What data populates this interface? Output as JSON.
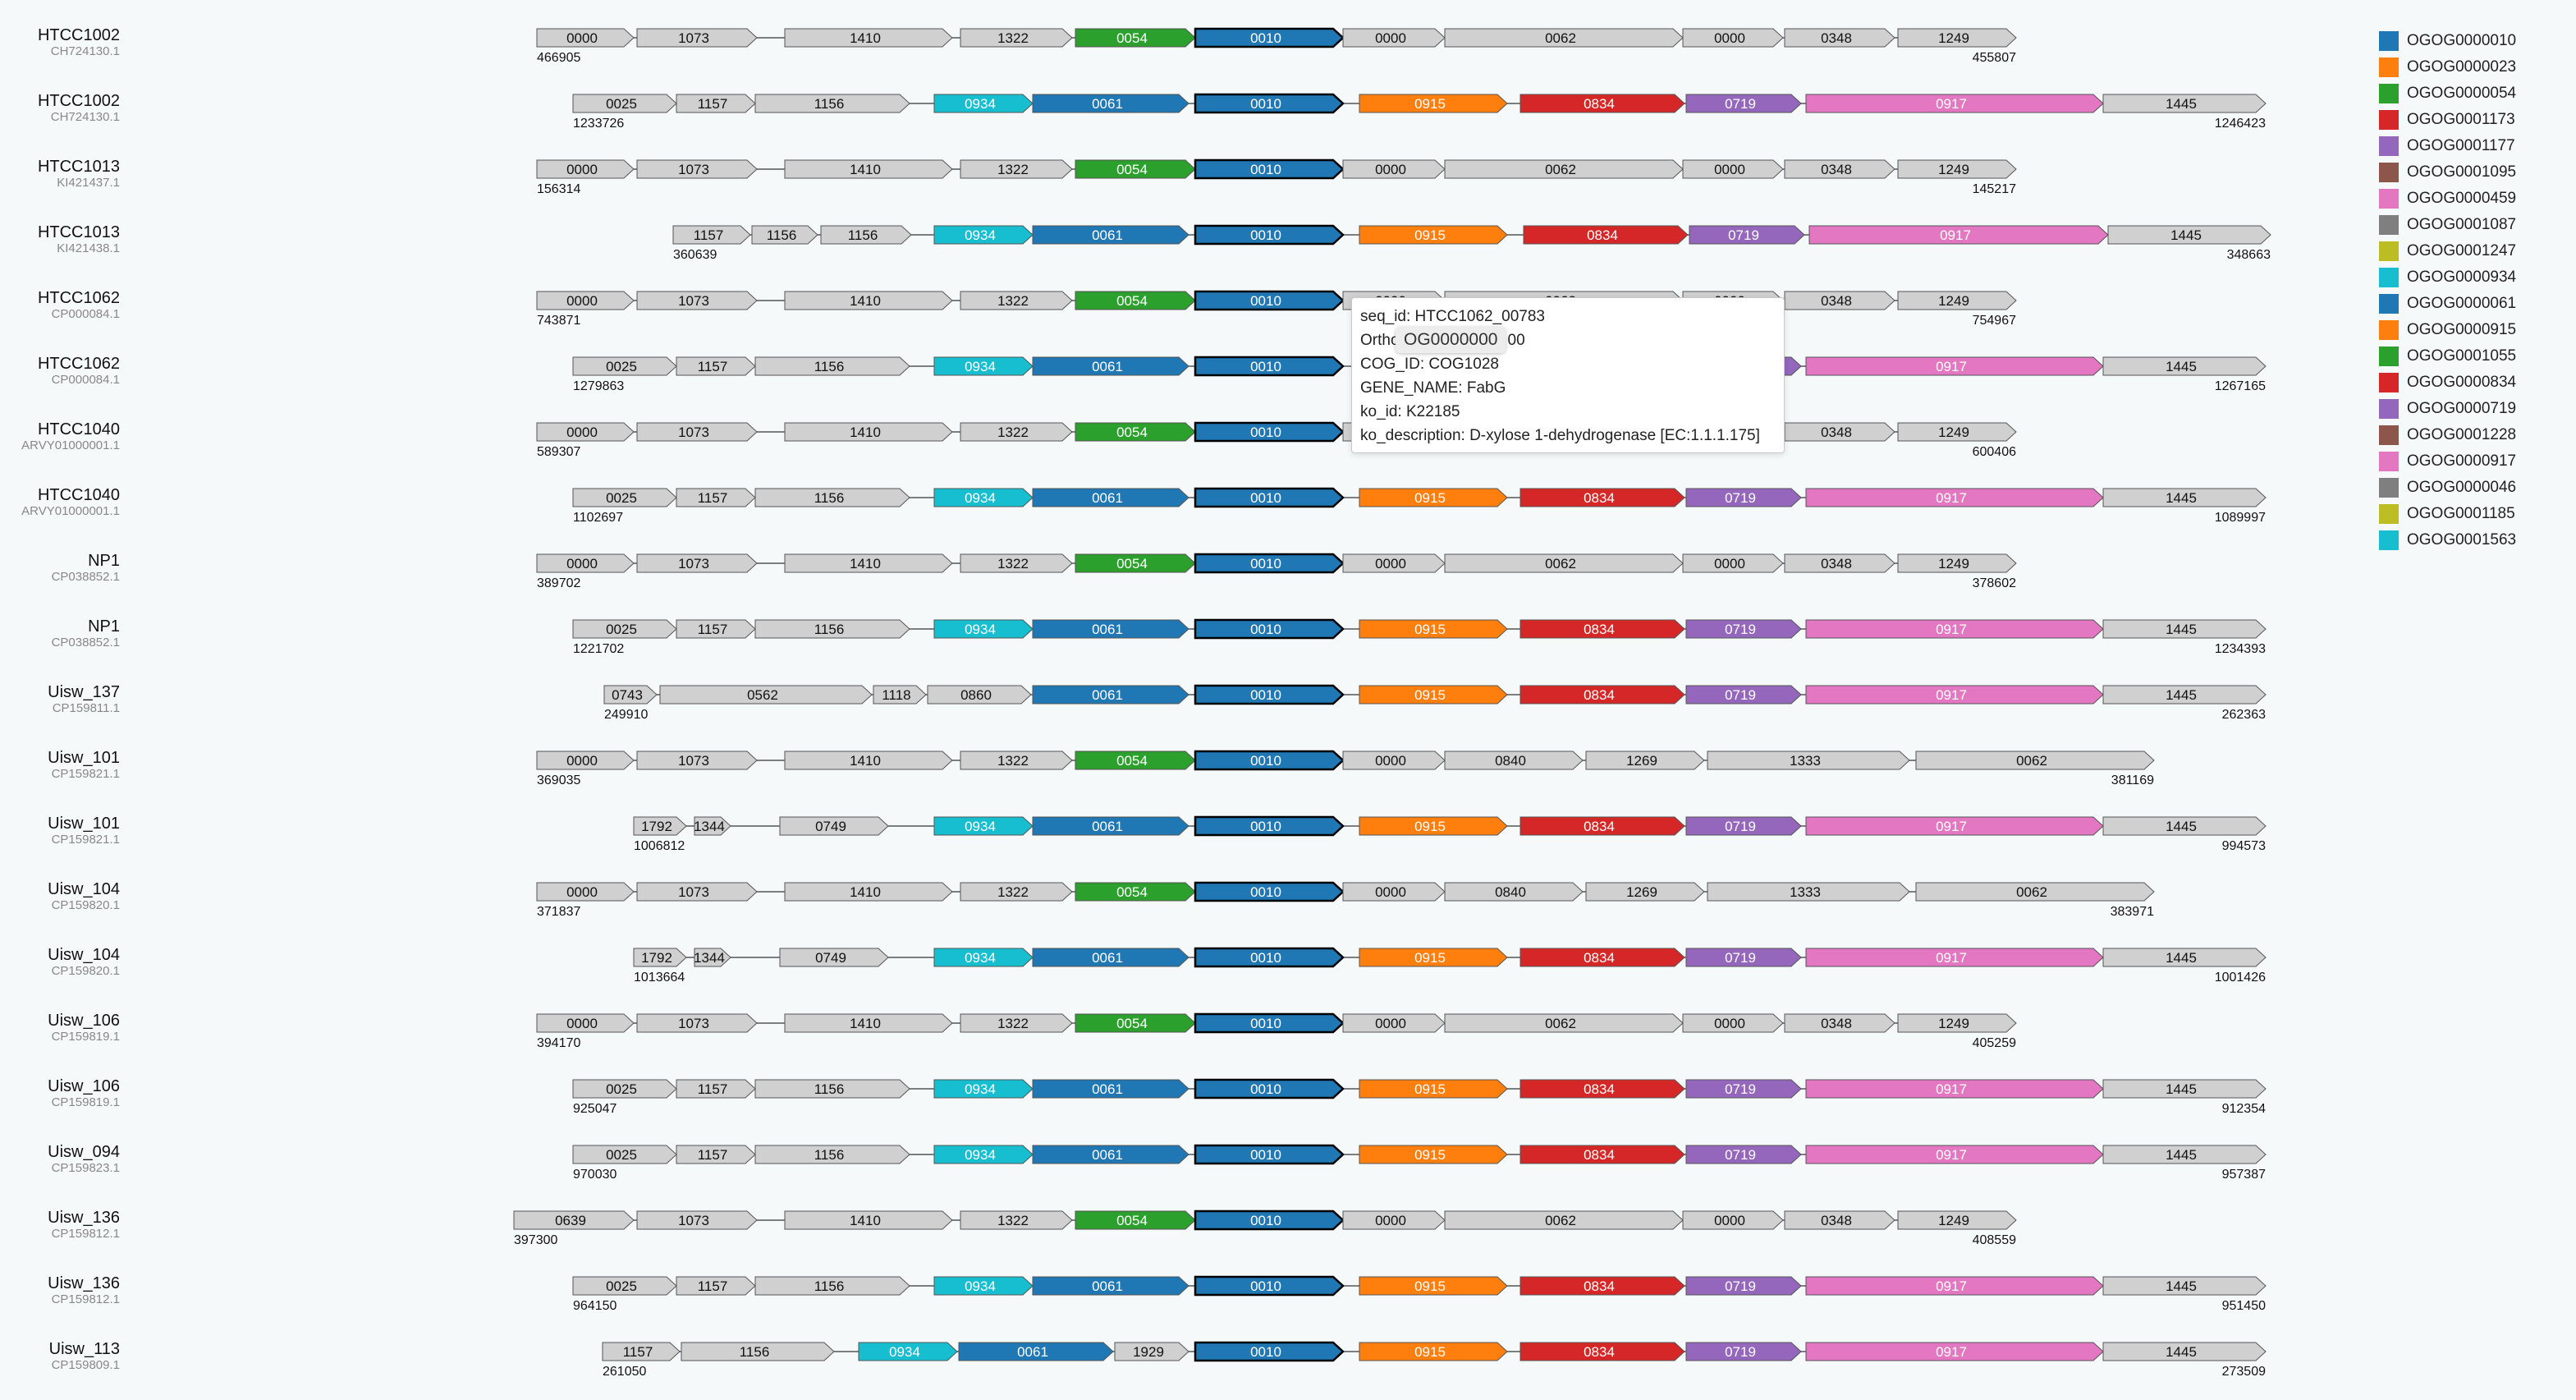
{
  "rows": [
    {
      "name": "HTCC1002",
      "acc": "CH724130.1",
      "start": "466905",
      "end": "455807"
    },
    {
      "name": "HTCC1002",
      "acc": "CH724130.1",
      "start": "1233726",
      "end": "1246423"
    },
    {
      "name": "HTCC1013",
      "acc": "KI421437.1",
      "start": "156314",
      "end": "145217"
    },
    {
      "name": "HTCC1013",
      "acc": "KI421438.1",
      "start": "360639",
      "end": "348663"
    },
    {
      "name": "HTCC1062",
      "acc": "CP000084.1",
      "start": "743871",
      "end": "754967"
    },
    {
      "name": "HTCC1062",
      "acc": "CP000084.1",
      "start": "1279863",
      "end": "1267165"
    },
    {
      "name": "HTCC1040",
      "acc": "ARVY01000001.1",
      "start": "589307",
      "end": "600406"
    },
    {
      "name": "HTCC1040",
      "acc": "ARVY01000001.1",
      "start": "1102697",
      "end": "1089997"
    },
    {
      "name": "NP1",
      "acc": "CP038852.1",
      "start": "389702",
      "end": "378602"
    },
    {
      "name": "NP1",
      "acc": "CP038852.1",
      "start": "1221702",
      "end": "1234393"
    },
    {
      "name": "Uisw_137",
      "acc": "CP159811.1",
      "start": "249910",
      "end": "262363"
    },
    {
      "name": "Uisw_101",
      "acc": "CP159821.1",
      "start": "369035",
      "end": "381169"
    },
    {
      "name": "Uisw_101",
      "acc": "CP159821.1",
      "start": "1006812",
      "end": "994573"
    },
    {
      "name": "Uisw_104",
      "acc": "CP159820.1",
      "start": "371837",
      "end": "383971"
    },
    {
      "name": "Uisw_104",
      "acc": "CP159820.1",
      "start": "1013664",
      "end": "1001426"
    },
    {
      "name": "Uisw_106",
      "acc": "CP159819.1",
      "start": "394170",
      "end": "405259"
    },
    {
      "name": "Uisw_106",
      "acc": "CP159819.1",
      "start": "925047",
      "end": "912354"
    },
    {
      "name": "Uisw_094",
      "acc": "CP159823.1",
      "start": "970030",
      "end": "957387"
    },
    {
      "name": "Uisw_136",
      "acc": "CP159812.1",
      "start": "397300",
      "end": "408559"
    },
    {
      "name": "Uisw_136",
      "acc": "CP159812.1",
      "start": "964150",
      "end": "951450"
    },
    {
      "name": "Uisw_113",
      "acc": "CP159809.1",
      "start": "261050",
      "end": "273509"
    }
  ],
  "gene_rows": [
    [
      [
        "0000",
        "gray"
      ],
      [
        "1073",
        "gray"
      ],
      [
        "1410",
        "gray"
      ],
      [
        "1322",
        "gray"
      ],
      [
        "0054",
        "green"
      ],
      [
        "0010",
        "blue"
      ],
      [
        "0000",
        "gray"
      ],
      [
        "0062",
        "gray"
      ],
      [
        "0000",
        "gray"
      ],
      [
        "0348",
        "gray"
      ],
      [
        "1249",
        "gray"
      ]
    ],
    [
      [
        "0025",
        "gray"
      ],
      [
        "1157",
        "gray"
      ],
      [
        "1156",
        "gray"
      ],
      [
        "0934",
        "cyan"
      ],
      [
        "0061",
        "blue"
      ],
      [
        "0010",
        "blue"
      ],
      [
        "0915",
        "orange"
      ],
      [
        "0834",
        "red"
      ],
      [
        "0719",
        "purple"
      ],
      [
        "0917",
        "pink"
      ],
      [
        "1445",
        "gray"
      ]
    ],
    [
      [
        "0000",
        "gray"
      ],
      [
        "1073",
        "gray"
      ],
      [
        "1410",
        "gray"
      ],
      [
        "1322",
        "gray"
      ],
      [
        "0054",
        "green"
      ],
      [
        "0010",
        "blue"
      ],
      [
        "0000",
        "gray"
      ],
      [
        "0062",
        "gray"
      ],
      [
        "0000",
        "gray"
      ],
      [
        "0348",
        "gray"
      ],
      [
        "1249",
        "gray"
      ]
    ],
    [
      [
        "1157",
        "gray"
      ],
      [
        "1156",
        "gray"
      ],
      [
        "1156",
        "gray"
      ],
      [
        "0934",
        "cyan"
      ],
      [
        "0061",
        "blue"
      ],
      [
        "0010",
        "blue"
      ],
      [
        "0915",
        "orange"
      ],
      [
        "0834",
        "red"
      ],
      [
        "0719",
        "purple"
      ],
      [
        "0917",
        "pink"
      ],
      [
        "1445",
        "gray"
      ]
    ],
    [
      [
        "0000",
        "gray"
      ],
      [
        "1073",
        "gray"
      ],
      [
        "1410",
        "gray"
      ],
      [
        "1322",
        "gray"
      ],
      [
        "0054",
        "green"
      ],
      [
        "0010",
        "blue"
      ],
      [
        "0000",
        "gray"
      ],
      [
        "0062",
        "gray"
      ],
      [
        "0000",
        "gray"
      ],
      [
        "0348",
        "gray"
      ],
      [
        "1249",
        "gray"
      ]
    ],
    [
      [
        "0025",
        "gray"
      ],
      [
        "1157",
        "gray"
      ],
      [
        "1156",
        "gray"
      ],
      [
        "0934",
        "cyan"
      ],
      [
        "0061",
        "blue"
      ],
      [
        "0010",
        "blue"
      ],
      [
        "0915",
        "orange"
      ],
      [
        "0834",
        "red"
      ],
      [
        "0719",
        "purple"
      ],
      [
        "0917",
        "pink"
      ],
      [
        "1445",
        "gray"
      ]
    ],
    [
      [
        "0000",
        "gray"
      ],
      [
        "1073",
        "gray"
      ],
      [
        "1410",
        "gray"
      ],
      [
        "1322",
        "gray"
      ],
      [
        "0054",
        "green"
      ],
      [
        "0010",
        "blue"
      ],
      [
        "0000",
        "gray"
      ],
      [
        "0062",
        "gray"
      ],
      [
        "0000",
        "gray"
      ],
      [
        "0348",
        "gray"
      ],
      [
        "1249",
        "gray"
      ]
    ],
    [
      [
        "0025",
        "gray"
      ],
      [
        "1157",
        "gray"
      ],
      [
        "1156",
        "gray"
      ],
      [
        "0934",
        "cyan"
      ],
      [
        "0061",
        "blue"
      ],
      [
        "0010",
        "blue"
      ],
      [
        "0915",
        "orange"
      ],
      [
        "0834",
        "red"
      ],
      [
        "0719",
        "purple"
      ],
      [
        "0917",
        "pink"
      ],
      [
        "1445",
        "gray"
      ]
    ],
    [
      [
        "0000",
        "gray"
      ],
      [
        "1073",
        "gray"
      ],
      [
        "1410",
        "gray"
      ],
      [
        "1322",
        "gray"
      ],
      [
        "0054",
        "green"
      ],
      [
        "0010",
        "blue"
      ],
      [
        "0000",
        "gray"
      ],
      [
        "0062",
        "gray"
      ],
      [
        "0000",
        "gray"
      ],
      [
        "0348",
        "gray"
      ],
      [
        "1249",
        "gray"
      ]
    ],
    [
      [
        "0025",
        "gray"
      ],
      [
        "1157",
        "gray"
      ],
      [
        "1156",
        "gray"
      ],
      [
        "0934",
        "cyan"
      ],
      [
        "0061",
        "blue"
      ],
      [
        "0010",
        "blue"
      ],
      [
        "0915",
        "orange"
      ],
      [
        "0834",
        "red"
      ],
      [
        "0719",
        "purple"
      ],
      [
        "0917",
        "pink"
      ],
      [
        "1445",
        "gray"
      ]
    ],
    [
      [
        "0743",
        "gray"
      ],
      [
        "0562",
        "gray"
      ],
      [
        "1118",
        "gray"
      ],
      [
        "0860",
        "gray"
      ],
      [
        "0061",
        "blue"
      ],
      [
        "0010",
        "blue"
      ],
      [
        "0915",
        "orange"
      ],
      [
        "0834",
        "red"
      ],
      [
        "0719",
        "purple"
      ],
      [
        "0917",
        "pink"
      ],
      [
        "1445",
        "gray"
      ]
    ],
    [
      [
        "0000",
        "gray"
      ],
      [
        "1073",
        "gray"
      ],
      [
        "1410",
        "gray"
      ],
      [
        "1322",
        "gray"
      ],
      [
        "0054",
        "green"
      ],
      [
        "0010",
        "blue"
      ],
      [
        "0000",
        "gray"
      ],
      [
        "0840",
        "gray"
      ],
      [
        "1269",
        "gray"
      ],
      [
        "1333",
        "gray"
      ],
      [
        "0062",
        "gray"
      ]
    ],
    [
      [
        "1792",
        "gray"
      ],
      [
        "1344",
        "gray"
      ],
      [
        "0749",
        "gray"
      ],
      [
        "0934",
        "cyan"
      ],
      [
        "0061",
        "blue"
      ],
      [
        "0010",
        "blue"
      ],
      [
        "0915",
        "orange"
      ],
      [
        "0834",
        "red"
      ],
      [
        "0719",
        "purple"
      ],
      [
        "0917",
        "pink"
      ],
      [
        "1445",
        "gray"
      ]
    ],
    [
      [
        "0000",
        "gray"
      ],
      [
        "1073",
        "gray"
      ],
      [
        "1410",
        "gray"
      ],
      [
        "1322",
        "gray"
      ],
      [
        "0054",
        "green"
      ],
      [
        "0010",
        "blue"
      ],
      [
        "0000",
        "gray"
      ],
      [
        "0840",
        "gray"
      ],
      [
        "1269",
        "gray"
      ],
      [
        "1333",
        "gray"
      ],
      [
        "0062",
        "gray"
      ]
    ],
    [
      [
        "1792",
        "gray"
      ],
      [
        "1344",
        "gray"
      ],
      [
        "0749",
        "gray"
      ],
      [
        "0934",
        "cyan"
      ],
      [
        "0061",
        "blue"
      ],
      [
        "0010",
        "blue"
      ],
      [
        "0915",
        "orange"
      ],
      [
        "0834",
        "red"
      ],
      [
        "0719",
        "purple"
      ],
      [
        "0917",
        "pink"
      ],
      [
        "1445",
        "gray"
      ]
    ],
    [
      [
        "0000",
        "gray"
      ],
      [
        "1073",
        "gray"
      ],
      [
        "1410",
        "gray"
      ],
      [
        "1322",
        "gray"
      ],
      [
        "0054",
        "green"
      ],
      [
        "0010",
        "blue"
      ],
      [
        "0000",
        "gray"
      ],
      [
        "0062",
        "gray"
      ],
      [
        "0000",
        "gray"
      ],
      [
        "0348",
        "gray"
      ],
      [
        "1249",
        "gray"
      ]
    ],
    [
      [
        "0025",
        "gray"
      ],
      [
        "1157",
        "gray"
      ],
      [
        "1156",
        "gray"
      ],
      [
        "0934",
        "cyan"
      ],
      [
        "0061",
        "blue"
      ],
      [
        "0010",
        "blue"
      ],
      [
        "0915",
        "orange"
      ],
      [
        "0834",
        "red"
      ],
      [
        "0719",
        "purple"
      ],
      [
        "0917",
        "pink"
      ],
      [
        "1445",
        "gray"
      ]
    ],
    [
      [
        "0025",
        "gray"
      ],
      [
        "1157",
        "gray"
      ],
      [
        "1156",
        "gray"
      ],
      [
        "0934",
        "cyan"
      ],
      [
        "0061",
        "blue"
      ],
      [
        "0010",
        "blue"
      ],
      [
        "0915",
        "orange"
      ],
      [
        "0834",
        "red"
      ],
      [
        "0719",
        "purple"
      ],
      [
        "0917",
        "pink"
      ],
      [
        "1445",
        "gray"
      ]
    ],
    [
      [
        "0639",
        "gray"
      ],
      [
        "1073",
        "gray"
      ],
      [
        "1410",
        "gray"
      ],
      [
        "1322",
        "gray"
      ],
      [
        "0054",
        "green"
      ],
      [
        "0010",
        "blue"
      ],
      [
        "0000",
        "gray"
      ],
      [
        "0062",
        "gray"
      ],
      [
        "0000",
        "gray"
      ],
      [
        "0348",
        "gray"
      ],
      [
        "1249",
        "gray"
      ]
    ],
    [
      [
        "0025",
        "gray"
      ],
      [
        "1157",
        "gray"
      ],
      [
        "1156",
        "gray"
      ],
      [
        "0934",
        "cyan"
      ],
      [
        "0061",
        "blue"
      ],
      [
        "0010",
        "blue"
      ],
      [
        "0915",
        "orange"
      ],
      [
        "0834",
        "red"
      ],
      [
        "0719",
        "purple"
      ],
      [
        "0917",
        "pink"
      ],
      [
        "1445",
        "gray"
      ]
    ],
    [
      [
        "1157",
        "gray"
      ],
      [
        "1156",
        "gray"
      ],
      [
        "0934",
        "cyan"
      ],
      [
        "0061",
        "blue"
      ],
      [
        "1929",
        "gray"
      ],
      [
        "0010",
        "blue"
      ],
      [
        "0915",
        "orange"
      ],
      [
        "0834",
        "red"
      ],
      [
        "0719",
        "purple"
      ],
      [
        "0917",
        "pink"
      ],
      [
        "1445",
        "gray"
      ]
    ]
  ],
  "colors": {
    "gray": "#d0d0d0",
    "blue": "#1f77b4",
    "orange": "#ff7f0e",
    "green": "#2ca02c",
    "red": "#d62728",
    "purple": "#9467bd",
    "pink": "#e377c2",
    "cyan": "#17becf"
  },
  "legend": [
    {
      "label": "OGOG0000010",
      "color": "#1f77b4"
    },
    {
      "label": "OGOG0000023",
      "color": "#ff7f0e"
    },
    {
      "label": "OGOG0000054",
      "color": "#2ca02c"
    },
    {
      "label": "OGOG0001173",
      "color": "#d62728"
    },
    {
      "label": "OGOG0001177",
      "color": "#9467bd"
    },
    {
      "label": "OGOG0001095",
      "color": "#8c564b"
    },
    {
      "label": "OGOG0000459",
      "color": "#e377c2"
    },
    {
      "label": "OGOG0001087",
      "color": "#7f7f7f"
    },
    {
      "label": "OGOG0001247",
      "color": "#bcbd22"
    },
    {
      "label": "OGOG0000934",
      "color": "#17becf"
    },
    {
      "label": "OGOG0000061",
      "color": "#1f77b4"
    },
    {
      "label": "OGOG0000915",
      "color": "#ff7f0e"
    },
    {
      "label": "OGOG0001055",
      "color": "#2ca02c"
    },
    {
      "label": "OGOG0000834",
      "color": "#d62728"
    },
    {
      "label": "OGOG0000719",
      "color": "#9467bd"
    },
    {
      "label": "OGOG0001228",
      "color": "#8c564b"
    },
    {
      "label": "OGOG0000917",
      "color": "#e377c2"
    },
    {
      "label": "OGOG0000046",
      "color": "#7f7f7f"
    },
    {
      "label": "OGOG0001185",
      "color": "#bcbd22"
    },
    {
      "label": "OGOG0001563",
      "color": "#17becf"
    }
  ],
  "tooltip": {
    "seq": "seq_id: HTCC1062_00783",
    "ortho": "Ortho",
    "ortho_tail": "00",
    "cog": "COG_ID: COG1028",
    "gene": "GENE_NAME: FabG",
    "ko": "ko_id: K22185",
    "ko_desc": "ko_description: D-xylose 1-dehydrogenase [EC:1.1.1.175]",
    "hover": "OG0000000"
  }
}
